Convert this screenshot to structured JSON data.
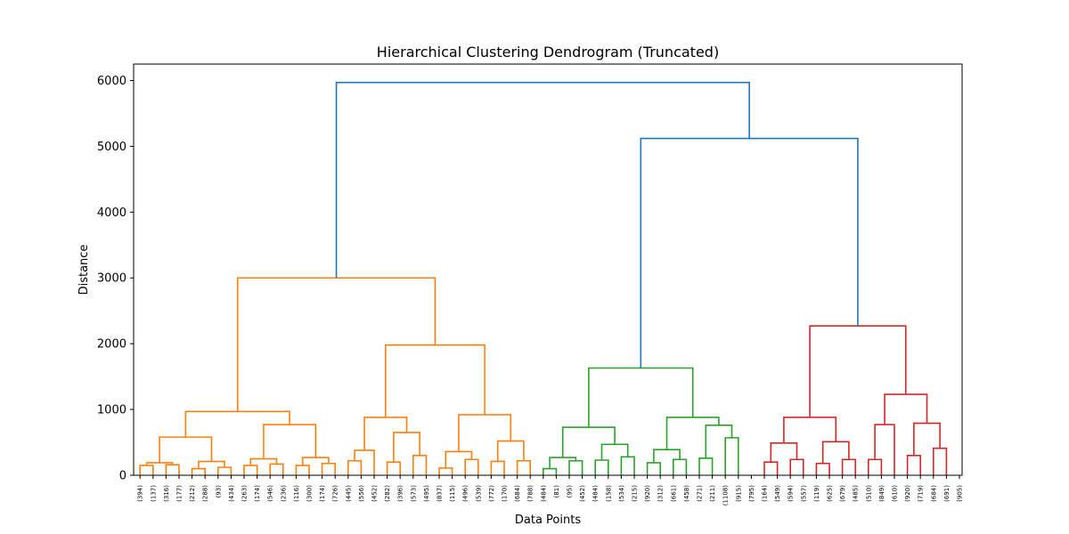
{
  "chart_data": {
    "type": "dendrogram",
    "title": "Hierarchical Clustering Dendrogram (Truncated)",
    "xlabel": "Data Points",
    "ylabel": "Distance",
    "ylim": [
      0,
      6250
    ],
    "yticks": [
      0,
      1000,
      2000,
      3000,
      4000,
      5000,
      6000
    ],
    "grid": false,
    "legend": "none",
    "colors": {
      "above_threshold": "#1f77b4",
      "cluster_orange": "#ff7f0e",
      "cluster_green": "#2ca02c",
      "cluster_red": "#d62728"
    },
    "leaf_labels": [
      "(394)",
      "(137)",
      "(316)",
      "(177)",
      "(212)",
      "(288)",
      "(93)",
      "(434)",
      "(263)",
      "(174)",
      "(546)",
      "(236)",
      "(116)",
      "(300)",
      "(174)",
      "(726)",
      "(445)",
      "(556)",
      "(452)",
      "(282)",
      "(396)",
      "(573)",
      "(495)",
      "(837)",
      "(115)",
      "(496)",
      "(539)",
      "(772)",
      "(170)",
      "(684)",
      "(788)",
      "(484)",
      "(81)",
      "(95)",
      "(452)",
      "(484)",
      "(158)",
      "(534)",
      "(215)",
      "(920)",
      "(312)",
      "(661)",
      "(458)",
      "(271)",
      "(211)",
      "(1108)",
      "(915)",
      "(795)",
      "(164)",
      "(549)",
      "(594)",
      "(557)",
      "(119)",
      "(625)",
      "(679)",
      "(485)",
      "(510)",
      "(849)",
      "(610)",
      "(920)",
      "(719)",
      "(684)",
      "(691)",
      "(905)"
    ],
    "merges": [
      {
        "a": 0,
        "b": 1,
        "height": 150,
        "color": "cluster_orange"
      },
      {
        "a": 2,
        "b": 3,
        "height": 160,
        "color": "cluster_orange"
      },
      {
        "a": "n0",
        "b": "n1",
        "height": 190,
        "color": "cluster_orange"
      },
      {
        "a": 4,
        "b": 5,
        "height": 100,
        "color": "cluster_orange"
      },
      {
        "a": 6,
        "b": 7,
        "height": 120,
        "color": "cluster_orange"
      },
      {
        "a": "n3",
        "b": "n4",
        "height": 210,
        "color": "cluster_orange"
      },
      {
        "a": "n2",
        "b": "n5",
        "height": 580,
        "color": "cluster_orange"
      },
      {
        "a": 8,
        "b": 9,
        "height": 150,
        "color": "cluster_orange"
      },
      {
        "a": 10,
        "b": 11,
        "height": 170,
        "color": "cluster_orange"
      },
      {
        "a": "n7",
        "b": "n8",
        "height": 250,
        "color": "cluster_orange"
      },
      {
        "a": 12,
        "b": 13,
        "height": 150,
        "color": "cluster_orange"
      },
      {
        "a": 14,
        "b": 15,
        "height": 180,
        "color": "cluster_orange"
      },
      {
        "a": "n10",
        "b": "n11",
        "height": 270,
        "color": "cluster_orange"
      },
      {
        "a": "n9",
        "b": "n12",
        "height": 770,
        "color": "cluster_orange"
      },
      {
        "a": "n6",
        "b": "n13",
        "height": 970,
        "color": "cluster_orange"
      },
      {
        "a": 16,
        "b": 17,
        "height": 220,
        "color": "cluster_orange"
      },
      {
        "a": "n15",
        "b": 18,
        "height": 380,
        "color": "cluster_orange"
      },
      {
        "a": 19,
        "b": 20,
        "height": 200,
        "color": "cluster_orange"
      },
      {
        "a": 21,
        "b": 22,
        "height": 300,
        "color": "cluster_orange"
      },
      {
        "a": "n17",
        "b": "n18",
        "height": 650,
        "color": "cluster_orange"
      },
      {
        "a": "n16",
        "b": "n19",
        "height": 880,
        "color": "cluster_orange"
      },
      {
        "a": 23,
        "b": 24,
        "height": 110,
        "color": "cluster_orange"
      },
      {
        "a": 25,
        "b": 26,
        "height": 240,
        "color": "cluster_orange"
      },
      {
        "a": "n21",
        "b": "n22",
        "height": 360,
        "color": "cluster_orange"
      },
      {
        "a": 27,
        "b": 28,
        "height": 210,
        "color": "cluster_orange"
      },
      {
        "a": 29,
        "b": 30,
        "height": 220,
        "color": "cluster_orange"
      },
      {
        "a": "n24",
        "b": "n25",
        "height": 520,
        "color": "cluster_orange"
      },
      {
        "a": "n23",
        "b": "n26",
        "height": 920,
        "color": "cluster_orange"
      },
      {
        "a": "n20",
        "b": "n27",
        "height": 1980,
        "color": "cluster_orange"
      },
      {
        "a": "n14",
        "b": "n28",
        "height": 3000,
        "color": "cluster_orange"
      },
      {
        "a": 31,
        "b": 32,
        "height": 100,
        "color": "cluster_green"
      },
      {
        "a": 33,
        "b": 34,
        "height": 220,
        "color": "cluster_green"
      },
      {
        "a": "n30",
        "b": "n31",
        "height": 270,
        "color": "cluster_green"
      },
      {
        "a": 35,
        "b": 36,
        "height": 230,
        "color": "cluster_green"
      },
      {
        "a": 37,
        "b": 38,
        "height": 280,
        "color": "cluster_green"
      },
      {
        "a": "n33",
        "b": "n34",
        "height": 470,
        "color": "cluster_green"
      },
      {
        "a": "n32",
        "b": "n35",
        "height": 730,
        "color": "cluster_green"
      },
      {
        "a": 39,
        "b": 40,
        "height": 190,
        "color": "cluster_green"
      },
      {
        "a": 41,
        "b": 42,
        "height": 240,
        "color": "cluster_green"
      },
      {
        "a": "n37",
        "b": "n38",
        "height": 390,
        "color": "cluster_green"
      },
      {
        "a": 43,
        "b": 44,
        "height": 260,
        "color": "cluster_green"
      },
      {
        "a": 45,
        "b": 46,
        "height": 570,
        "color": "cluster_green"
      },
      {
        "a": "n40",
        "b": "n41",
        "height": 760,
        "color": "cluster_green"
      },
      {
        "a": "n39",
        "b": "n42",
        "height": 880,
        "color": "cluster_green"
      },
      {
        "a": "n36",
        "b": "n43",
        "height": 1630,
        "color": "cluster_green"
      },
      {
        "a": 48,
        "b": 49,
        "height": 200,
        "color": "cluster_red"
      },
      {
        "a": 50,
        "b": 51,
        "height": 240,
        "color": "cluster_red"
      },
      {
        "a": "n45",
        "b": "n46",
        "height": 490,
        "color": "cluster_red"
      },
      {
        "a": 52,
        "b": 53,
        "height": 180,
        "color": "cluster_red"
      },
      {
        "a": 54,
        "b": 55,
        "height": 240,
        "color": "cluster_red"
      },
      {
        "a": "n48",
        "b": "n49",
        "height": 510,
        "color": "cluster_red"
      },
      {
        "a": "n47",
        "b": "n50",
        "height": 880,
        "color": "cluster_red"
      },
      {
        "a": 56,
        "b": 57,
        "height": 240,
        "color": "cluster_red"
      },
      {
        "a": "n52",
        "b": 58,
        "height": 770,
        "color": "cluster_red"
      },
      {
        "a": 59,
        "b": 60,
        "height": 300,
        "color": "cluster_red"
      },
      {
        "a": 61,
        "b": 62,
        "height": 410,
        "color": "cluster_red"
      },
      {
        "a": "n54",
        "b": "n55",
        "height": 790,
        "color": "cluster_red"
      },
      {
        "a": "n53",
        "b": "n56",
        "height": 1230,
        "color": "cluster_red"
      },
      {
        "a": "n51",
        "b": "n57",
        "height": 2270,
        "color": "cluster_red"
      },
      {
        "a": "n44",
        "b": "n58",
        "height": 5120,
        "color": "above_threshold"
      },
      {
        "a": "n29",
        "b": "n59",
        "height": 5970,
        "color": "above_threshold"
      }
    ]
  }
}
